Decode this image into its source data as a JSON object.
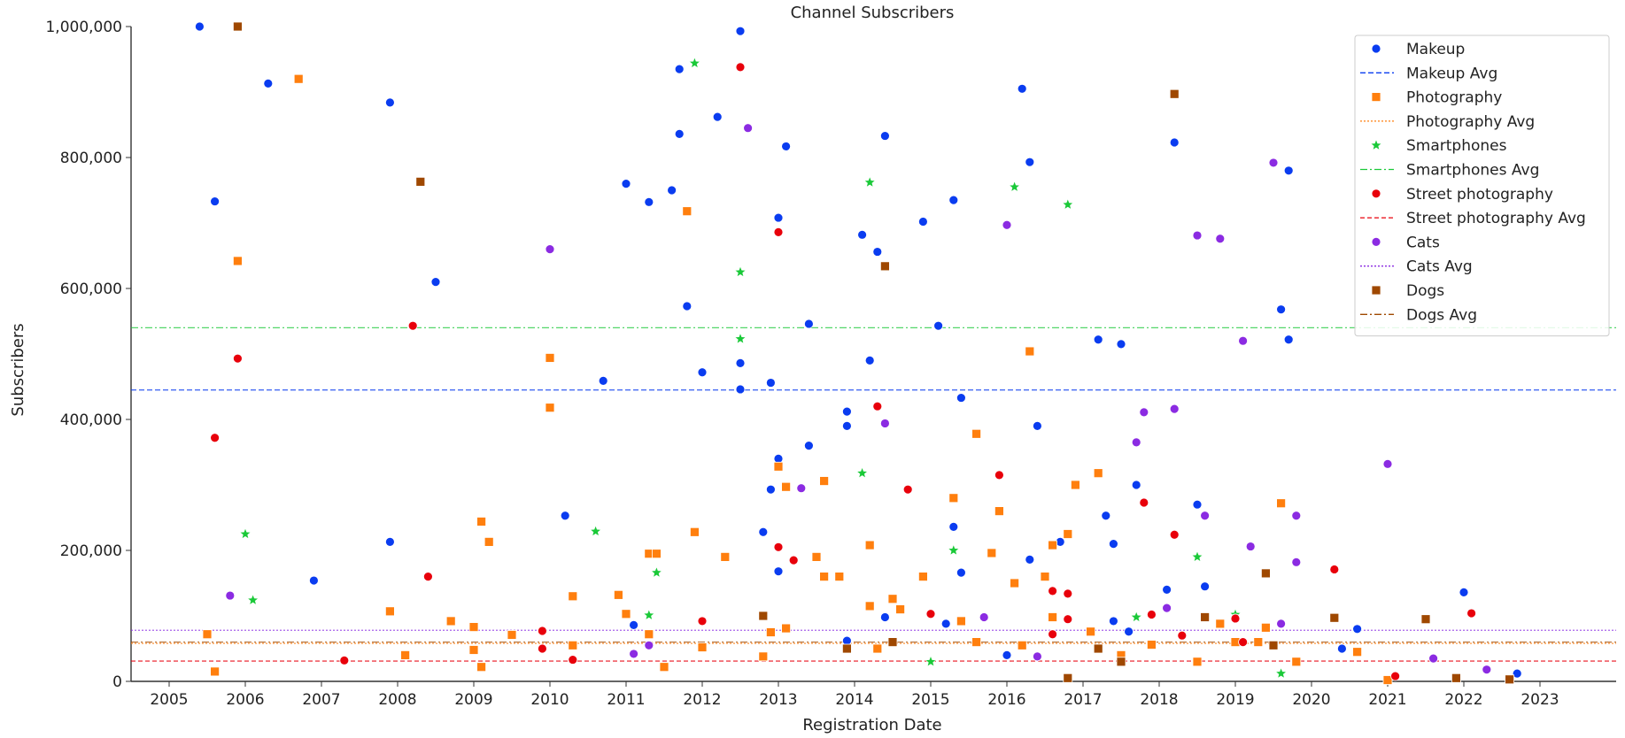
{
  "chart_data": {
    "type": "scatter",
    "title": "Channel Subscribers",
    "xlabel": "Registration Date",
    "ylabel": "Subscribers",
    "xlim": [
      2004.5,
      2024.0
    ],
    "ylim": [
      0,
      1000000
    ],
    "x_ticks": [
      "2005",
      "2006",
      "2007",
      "2008",
      "2009",
      "2010",
      "2011",
      "2012",
      "2013",
      "2014",
      "2015",
      "2016",
      "2017",
      "2018",
      "2019",
      "2020",
      "2021",
      "2022",
      "2023"
    ],
    "y_ticks": [
      {
        "value": 0,
        "label": "0"
      },
      {
        "value": 200000,
        "label": "200,000"
      },
      {
        "value": 400000,
        "label": "400,000"
      },
      {
        "value": 600000,
        "label": "600,000"
      },
      {
        "value": 800000,
        "label": "800,000"
      },
      {
        "value": 1000000,
        "label": "1,000,000"
      }
    ],
    "grid": false,
    "legend_position": "top-right",
    "series": [
      {
        "name": "Makeup",
        "avg_name": "Makeup Avg",
        "color": "#0a3cf0",
        "marker": "circle",
        "avg": 445000,
        "avg_dash": "6,3",
        "points": [
          [
            2005.4,
            1000000
          ],
          [
            2005.6,
            733000
          ],
          [
            2006.3,
            913000
          ],
          [
            2006.9,
            154000
          ],
          [
            2007.9,
            884000
          ],
          [
            2007.9,
            213000
          ],
          [
            2008.5,
            610000
          ],
          [
            2010.2,
            253000
          ],
          [
            2010.7,
            459000
          ],
          [
            2011.0,
            760000
          ],
          [
            2011.1,
            86000
          ],
          [
            2011.3,
            732000
          ],
          [
            2011.6,
            750000
          ],
          [
            2011.7,
            836000
          ],
          [
            2011.7,
            935000
          ],
          [
            2011.8,
            573000
          ],
          [
            2012.0,
            472000
          ],
          [
            2012.2,
            862000
          ],
          [
            2012.5,
            486000
          ],
          [
            2012.5,
            993000
          ],
          [
            2012.5,
            446000
          ],
          [
            2012.8,
            228000
          ],
          [
            2012.9,
            293000
          ],
          [
            2012.9,
            456000
          ],
          [
            2013.0,
            168000
          ],
          [
            2013.0,
            340000
          ],
          [
            2013.0,
            708000
          ],
          [
            2013.1,
            817000
          ],
          [
            2013.4,
            360000
          ],
          [
            2013.4,
            546000
          ],
          [
            2013.9,
            412000
          ],
          [
            2013.9,
            390000
          ],
          [
            2013.9,
            62000
          ],
          [
            2014.1,
            682000
          ],
          [
            2014.2,
            490000
          ],
          [
            2014.3,
            656000
          ],
          [
            2014.4,
            833000
          ],
          [
            2014.4,
            98000
          ],
          [
            2014.9,
            702000
          ],
          [
            2015.1,
            543000
          ],
          [
            2015.2,
            88000
          ],
          [
            2015.3,
            236000
          ],
          [
            2015.3,
            735000
          ],
          [
            2015.4,
            166000
          ],
          [
            2015.4,
            433000
          ],
          [
            2016.0,
            40000
          ],
          [
            2016.2,
            905000
          ],
          [
            2016.3,
            186000
          ],
          [
            2016.3,
            793000
          ],
          [
            2016.4,
            390000
          ],
          [
            2016.7,
            213000
          ],
          [
            2017.2,
            522000
          ],
          [
            2017.3,
            253000
          ],
          [
            2017.4,
            92000
          ],
          [
            2017.4,
            210000
          ],
          [
            2017.5,
            515000
          ],
          [
            2017.6,
            76000
          ],
          [
            2017.7,
            300000
          ],
          [
            2018.1,
            140000
          ],
          [
            2018.2,
            823000
          ],
          [
            2018.5,
            270000
          ],
          [
            2018.6,
            145000
          ],
          [
            2019.6,
            568000
          ],
          [
            2019.7,
            780000
          ],
          [
            2019.7,
            522000
          ],
          [
            2020.4,
            50000
          ],
          [
            2020.6,
            80000
          ],
          [
            2022.0,
            136000
          ],
          [
            2022.7,
            12000
          ]
        ]
      },
      {
        "name": "Photography",
        "avg_name": "Photography Avg",
        "color": "#ff7f0e",
        "marker": "square",
        "avg": 58000,
        "avg_dash": "2,2",
        "points": [
          [
            2005.5,
            72000
          ],
          [
            2005.6,
            15000
          ],
          [
            2005.9,
            642000
          ],
          [
            2006.7,
            920000
          ],
          [
            2007.9,
            107000
          ],
          [
            2008.1,
            40000
          ],
          [
            2008.7,
            92000
          ],
          [
            2009.0,
            48000
          ],
          [
            2009.0,
            83000
          ],
          [
            2009.1,
            244000
          ],
          [
            2009.1,
            22000
          ],
          [
            2009.2,
            213000
          ],
          [
            2009.5,
            71000
          ],
          [
            2010.0,
            494000
          ],
          [
            2010.0,
            418000
          ],
          [
            2010.3,
            130000
          ],
          [
            2010.3,
            55000
          ],
          [
            2010.9,
            132000
          ],
          [
            2011.0,
            103000
          ],
          [
            2011.3,
            195000
          ],
          [
            2011.4,
            195000
          ],
          [
            2011.3,
            72000
          ],
          [
            2011.5,
            22000
          ],
          [
            2011.8,
            718000
          ],
          [
            2011.9,
            228000
          ],
          [
            2012.0,
            52000
          ],
          [
            2012.3,
            190000
          ],
          [
            2012.8,
            38000
          ],
          [
            2012.9,
            75000
          ],
          [
            2013.0,
            328000
          ],
          [
            2013.1,
            297000
          ],
          [
            2013.1,
            81000
          ],
          [
            2013.6,
            306000
          ],
          [
            2013.6,
            160000
          ],
          [
            2013.8,
            160000
          ],
          [
            2013.5,
            190000
          ],
          [
            2014.2,
            208000
          ],
          [
            2014.2,
            115000
          ],
          [
            2014.3,
            50000
          ],
          [
            2014.5,
            126000
          ],
          [
            2014.6,
            110000
          ],
          [
            2014.9,
            160000
          ],
          [
            2015.3,
            280000
          ],
          [
            2015.4,
            92000
          ],
          [
            2015.6,
            60000
          ],
          [
            2015.6,
            378000
          ],
          [
            2015.8,
            196000
          ],
          [
            2015.9,
            260000
          ],
          [
            2016.1,
            150000
          ],
          [
            2016.2,
            55000
          ],
          [
            2016.3,
            504000
          ],
          [
            2016.5,
            160000
          ],
          [
            2016.6,
            98000
          ],
          [
            2016.6,
            208000
          ],
          [
            2016.8,
            225000
          ],
          [
            2016.9,
            300000
          ],
          [
            2017.1,
            76000
          ],
          [
            2017.2,
            318000
          ],
          [
            2017.5,
            40000
          ],
          [
            2017.9,
            56000
          ],
          [
            2018.5,
            30000
          ],
          [
            2018.8,
            88000
          ],
          [
            2019.0,
            60000
          ],
          [
            2019.3,
            60000
          ],
          [
            2019.4,
            82000
          ],
          [
            2019.6,
            272000
          ],
          [
            2019.8,
            30000
          ],
          [
            2020.6,
            45000
          ],
          [
            2021.0,
            2000
          ]
        ]
      },
      {
        "name": "Smartphones",
        "avg_name": "Smartphones Avg",
        "color": "#1ac938",
        "marker": "star",
        "avg": 540000,
        "avg_dash": "8,3,2,3",
        "points": [
          [
            2006.0,
            225000
          ],
          [
            2006.1,
            124000
          ],
          [
            2010.6,
            229000
          ],
          [
            2011.3,
            101000
          ],
          [
            2011.4,
            166000
          ],
          [
            2011.9,
            944000
          ],
          [
            2012.5,
            625000
          ],
          [
            2012.5,
            523000
          ],
          [
            2014.2,
            762000
          ],
          [
            2014.1,
            318000
          ],
          [
            2015.0,
            30000
          ],
          [
            2015.3,
            200000
          ],
          [
            2016.1,
            755000
          ],
          [
            2016.8,
            728000
          ],
          [
            2017.7,
            98000
          ],
          [
            2018.5,
            190000
          ],
          [
            2019.0,
            102000
          ],
          [
            2019.6,
            12000
          ]
        ]
      },
      {
        "name": "Street photography",
        "avg_name": "Street photography Avg",
        "color": "#e8000b",
        "marker": "circle",
        "avg": 31000,
        "avg_dash": "5,3",
        "points": [
          [
            2005.6,
            372000
          ],
          [
            2005.9,
            493000
          ],
          [
            2007.3,
            32000
          ],
          [
            2008.2,
            543000
          ],
          [
            2008.4,
            160000
          ],
          [
            2009.9,
            50000
          ],
          [
            2009.9,
            77000
          ],
          [
            2010.3,
            33000
          ],
          [
            2012.0,
            92000
          ],
          [
            2012.5,
            938000
          ],
          [
            2013.0,
            686000
          ],
          [
            2013.0,
            205000
          ],
          [
            2013.2,
            185000
          ],
          [
            2014.3,
            420000
          ],
          [
            2014.7,
            293000
          ],
          [
            2015.0,
            103000
          ],
          [
            2015.9,
            315000
          ],
          [
            2016.6,
            138000
          ],
          [
            2016.6,
            72000
          ],
          [
            2016.8,
            134000
          ],
          [
            2016.8,
            95000
          ],
          [
            2017.8,
            273000
          ],
          [
            2017.9,
            102000
          ],
          [
            2018.2,
            224000
          ],
          [
            2018.3,
            70000
          ],
          [
            2019.0,
            96000
          ],
          [
            2019.1,
            60000
          ],
          [
            2020.3,
            171000
          ],
          [
            2021.1,
            8000
          ],
          [
            2022.1,
            104000
          ]
        ]
      },
      {
        "name": "Cats",
        "avg_name": "Cats Avg",
        "color": "#8b2be2",
        "marker": "circle",
        "avg": 78000,
        "avg_dash": "2,2",
        "points": [
          [
            2005.8,
            131000
          ],
          [
            2010.0,
            660000
          ],
          [
            2011.1,
            42000
          ],
          [
            2011.3,
            55000
          ],
          [
            2012.6,
            845000
          ],
          [
            2013.3,
            295000
          ],
          [
            2014.4,
            394000
          ],
          [
            2015.7,
            98000
          ],
          [
            2016.0,
            697000
          ],
          [
            2016.4,
            38000
          ],
          [
            2017.7,
            365000
          ],
          [
            2017.8,
            411000
          ],
          [
            2018.1,
            112000
          ],
          [
            2018.2,
            416000
          ],
          [
            2018.5,
            681000
          ],
          [
            2018.6,
            253000
          ],
          [
            2018.8,
            676000
          ],
          [
            2019.1,
            520000
          ],
          [
            2019.2,
            206000
          ],
          [
            2019.5,
            792000
          ],
          [
            2019.6,
            88000
          ],
          [
            2019.8,
            182000
          ],
          [
            2019.8,
            253000
          ],
          [
            2021.0,
            332000
          ],
          [
            2021.6,
            35000
          ],
          [
            2022.3,
            18000
          ]
        ]
      },
      {
        "name": "Dogs",
        "avg_name": "Dogs Avg",
        "color": "#9f4800",
        "marker": "square",
        "avg": 60000,
        "avg_dash": "8,3,2,3",
        "points": [
          [
            2005.9,
            1000000
          ],
          [
            2008.3,
            763000
          ],
          [
            2012.8,
            100000
          ],
          [
            2013.9,
            50000
          ],
          [
            2014.4,
            634000
          ],
          [
            2014.5,
            60000
          ],
          [
            2016.8,
            5000
          ],
          [
            2017.2,
            50000
          ],
          [
            2017.5,
            30000
          ],
          [
            2018.2,
            897000
          ],
          [
            2018.6,
            98000
          ],
          [
            2019.4,
            165000
          ],
          [
            2019.5,
            55000
          ],
          [
            2020.3,
            97000
          ],
          [
            2021.5,
            95000
          ],
          [
            2021.9,
            5000
          ],
          [
            2022.6,
            3000
          ]
        ]
      }
    ]
  }
}
